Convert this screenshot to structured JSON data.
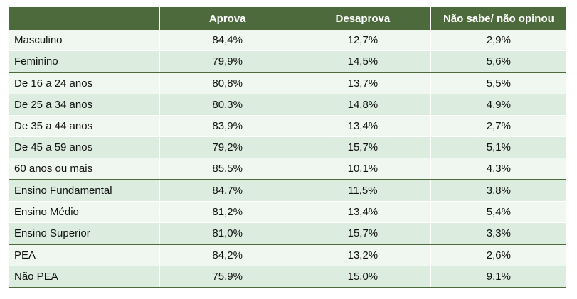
{
  "table": {
    "headers": [
      "",
      "Aprova",
      "Desaprova",
      "Não sabe/ não opinou"
    ],
    "rows": [
      {
        "label": "Masculino",
        "values": [
          "84,4%",
          "12,7%",
          "2,9%"
        ],
        "group_start": false
      },
      {
        "label": "Feminino",
        "values": [
          "79,9%",
          "14,5%",
          "5,6%"
        ],
        "group_start": false
      },
      {
        "label": "De 16 a 24 anos",
        "values": [
          "80,8%",
          "13,7%",
          "5,5%"
        ],
        "group_start": true
      },
      {
        "label": "De 25 a 34 anos",
        "values": [
          "80,3%",
          "14,8%",
          "4,9%"
        ],
        "group_start": false
      },
      {
        "label": "De 35 a 44 anos",
        "values": [
          "83,9%",
          "13,4%",
          "2,7%"
        ],
        "group_start": false
      },
      {
        "label": "De 45 a 59 anos",
        "values": [
          "79,2%",
          "15,7%",
          "5,1%"
        ],
        "group_start": false
      },
      {
        "label": "60 anos ou mais",
        "values": [
          "85,5%",
          "10,1%",
          "4,3%"
        ],
        "group_start": false
      },
      {
        "label": "Ensino Fundamental",
        "values": [
          "84,7%",
          "11,5%",
          "3,8%"
        ],
        "group_start": true
      },
      {
        "label": "Ensino Médio",
        "values": [
          "81,2%",
          "13,4%",
          "5,4%"
        ],
        "group_start": false
      },
      {
        "label": "Ensino Superior",
        "values": [
          "81,0%",
          "15,7%",
          "3,3%"
        ],
        "group_start": false
      },
      {
        "label": "PEA",
        "values": [
          "84,2%",
          "13,2%",
          "2,6%"
        ],
        "group_start": true
      },
      {
        "label": "Não PEA",
        "values": [
          "75,9%",
          "15,0%",
          "9,1%"
        ],
        "group_start": false
      }
    ]
  },
  "colors": {
    "header_bg": "#4d6a3d",
    "row_light": "#f0f6f0",
    "row_dark": "#dcecdf"
  }
}
